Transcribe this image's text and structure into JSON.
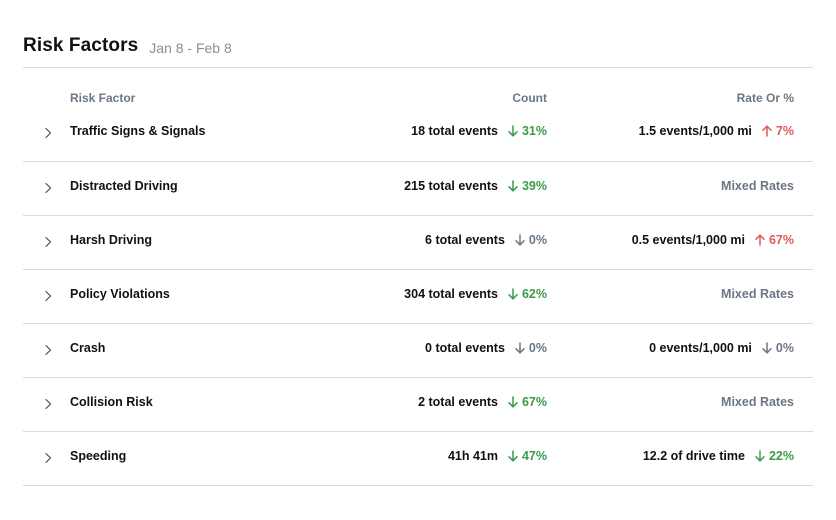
{
  "header": {
    "title": "Risk Factors",
    "date_range": "Jan 8 - Feb 8"
  },
  "columns": {
    "factor": "Risk Factor",
    "count": "Count",
    "rate": "Rate Or %"
  },
  "rows": [
    {
      "factor": "Traffic Signs & Signals",
      "count": "18 total events",
      "count_trend": {
        "direction": "down",
        "value": "31%"
      },
      "rate": "1.5 events/1,000 mi",
      "rate_trend": {
        "direction": "up",
        "value": "7%"
      }
    },
    {
      "factor": "Distracted Driving",
      "count": "215 total events",
      "count_trend": {
        "direction": "down",
        "value": "39%"
      },
      "rate": "Mixed Rates",
      "rate_trend": null
    },
    {
      "factor": "Harsh Driving",
      "count": "6 total events",
      "count_trend": {
        "direction": "flat",
        "value": "0%"
      },
      "rate": "0.5 events/1,000 mi",
      "rate_trend": {
        "direction": "up",
        "value": "67%"
      }
    },
    {
      "factor": "Policy Violations",
      "count": "304 total events",
      "count_trend": {
        "direction": "down",
        "value": "62%"
      },
      "rate": "Mixed Rates",
      "rate_trend": null
    },
    {
      "factor": "Crash",
      "count": "0 total events",
      "count_trend": {
        "direction": "flat",
        "value": "0%"
      },
      "rate": "0 events/1,000 mi",
      "rate_trend": {
        "direction": "flat",
        "value": "0%"
      }
    },
    {
      "factor": "Collision Risk",
      "count": "2 total events",
      "count_trend": {
        "direction": "down",
        "value": "67%"
      },
      "rate": "Mixed Rates",
      "rate_trend": null
    },
    {
      "factor": "Speeding",
      "count": "41h 41m",
      "count_trend": {
        "direction": "down",
        "value": "47%"
      },
      "rate": "12.2 of drive time",
      "rate_trend": {
        "direction": "down",
        "value": "22%"
      }
    }
  ],
  "icons": {
    "expand": "chevron-right-icon",
    "decrease": "arrow-down-icon",
    "increase": "arrow-up-icon"
  },
  "colors": {
    "decrease": "#3c9a48",
    "increase": "#e05a5a",
    "neutral": "#6b7785"
  }
}
